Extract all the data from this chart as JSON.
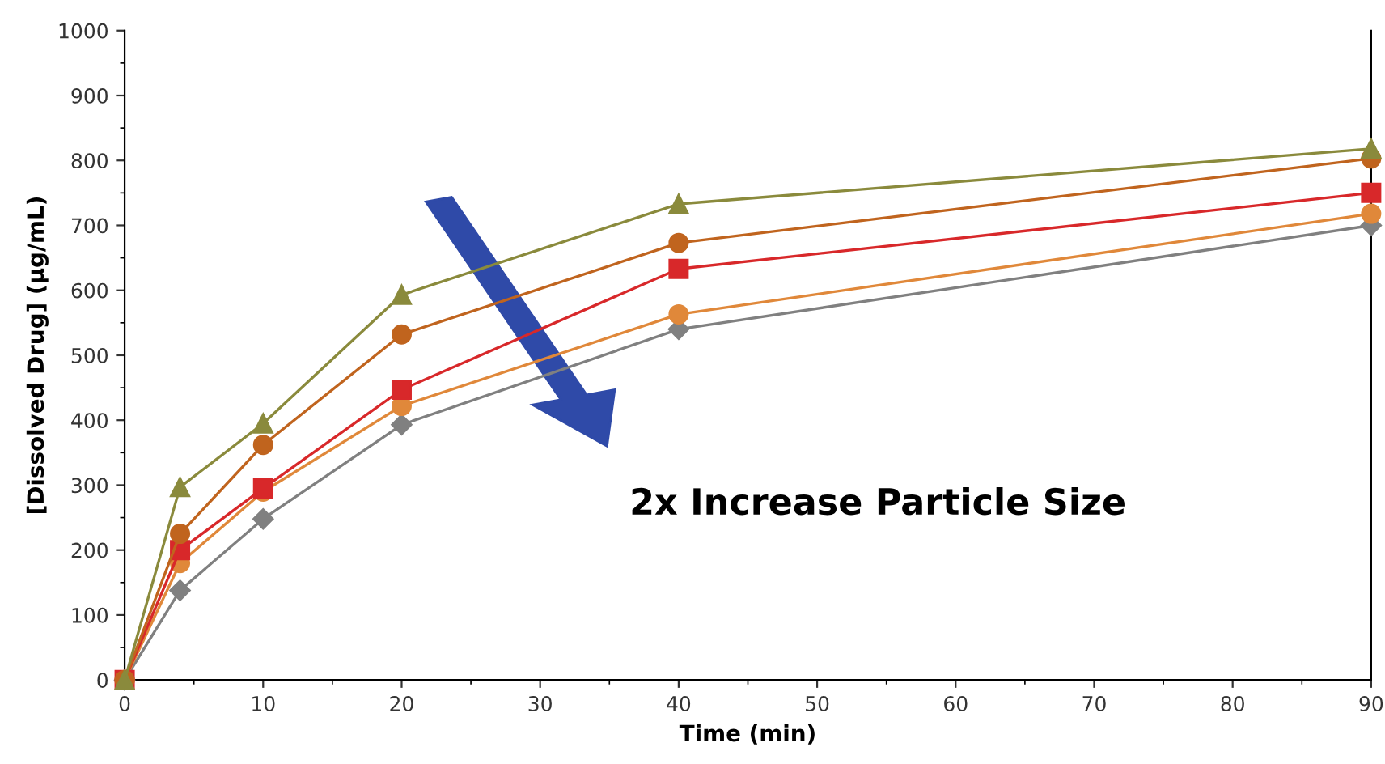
{
  "chart_data": {
    "type": "line",
    "xlabel": "Time (min)",
    "ylabel": "[Dissolved Drug] (µg/mL)",
    "x": [
      0,
      4,
      10,
      20,
      40,
      90
    ],
    "xlim": [
      0,
      90
    ],
    "xticks": [
      0,
      10,
      20,
      30,
      40,
      50,
      60,
      70,
      80,
      90
    ],
    "ylim": [
      0,
      1000
    ],
    "yticks": [
      0,
      100,
      200,
      300,
      400,
      500,
      600,
      700,
      800,
      900,
      1000
    ],
    "grid": false,
    "legend": false,
    "series": [
      {
        "color": "#8a8a3c",
        "marker": "triangle",
        "values": [
          0,
          297,
          395,
          593,
          733,
          818
        ]
      },
      {
        "color": "#c0641e",
        "marker": "circle",
        "values": [
          0,
          225,
          362,
          532,
          673,
          803
        ]
      },
      {
        "color": "#d8282a",
        "marker": "square",
        "values": [
          0,
          200,
          295,
          447,
          633,
          750
        ]
      },
      {
        "color": "#e0883a",
        "marker": "circle",
        "values": [
          0,
          180,
          290,
          422,
          563,
          718
        ]
      },
      {
        "color": "#808080",
        "marker": "diamond",
        "values": [
          0,
          138,
          248,
          393,
          540,
          700
        ]
      }
    ],
    "annotations": [
      "2x Increase Particle Size"
    ]
  }
}
